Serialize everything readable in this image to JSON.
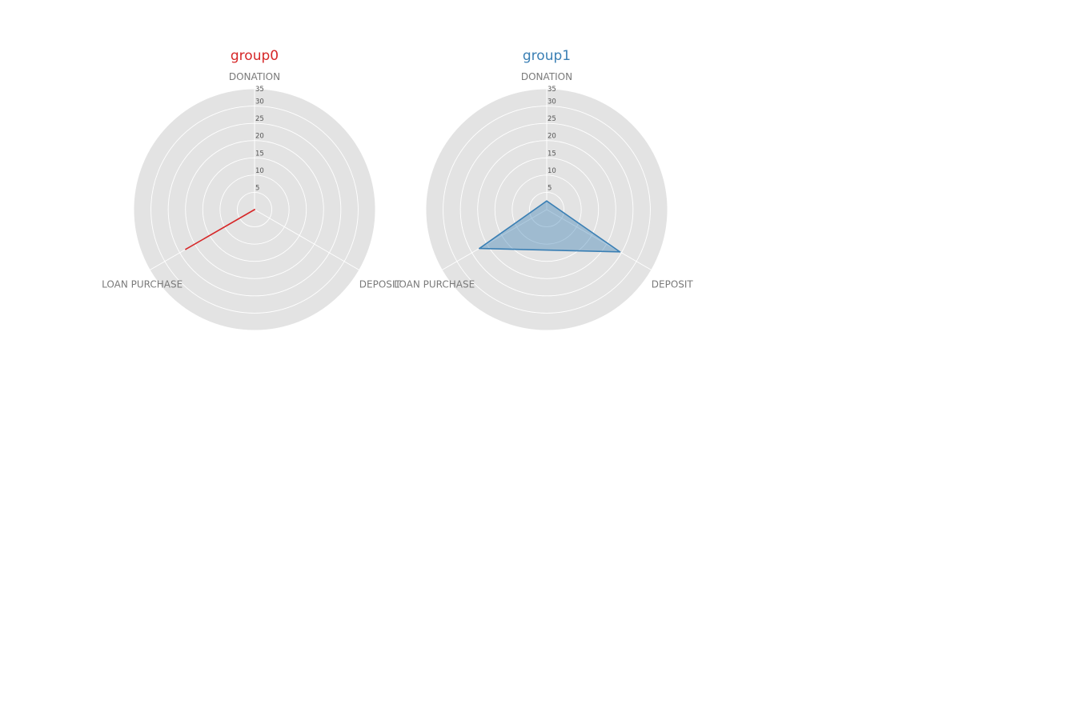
{
  "chart_data": [
    {
      "type": "radar",
      "title": "group0",
      "title_color": "#d62728",
      "categories": [
        "DONATION",
        "DEPOSIT",
        "LOAN PURCHASE"
      ],
      "ticks": [
        5,
        10,
        15,
        20,
        25,
        30,
        35
      ],
      "rlim": [
        0,
        35
      ],
      "grid": true,
      "series": [
        {
          "values": [
            0,
            0,
            23
          ],
          "color": "#d62728",
          "fill": "#d62728",
          "fill_opacity": 0.4
        }
      ]
    },
    {
      "type": "radar",
      "title": "group1",
      "title_color": "#3a7fb4",
      "categories": [
        "DONATION",
        "DEPOSIT",
        "LOAN PURCHASE"
      ],
      "ticks": [
        5,
        10,
        15,
        20,
        25,
        30,
        35
      ],
      "rlim": [
        0,
        35
      ],
      "grid": true,
      "series": [
        {
          "values": [
            2.5,
            24.5,
            22.5
          ],
          "color": "#3a7fb4",
          "fill": "#3a7fb4",
          "fill_opacity": 0.4
        }
      ]
    }
  ]
}
